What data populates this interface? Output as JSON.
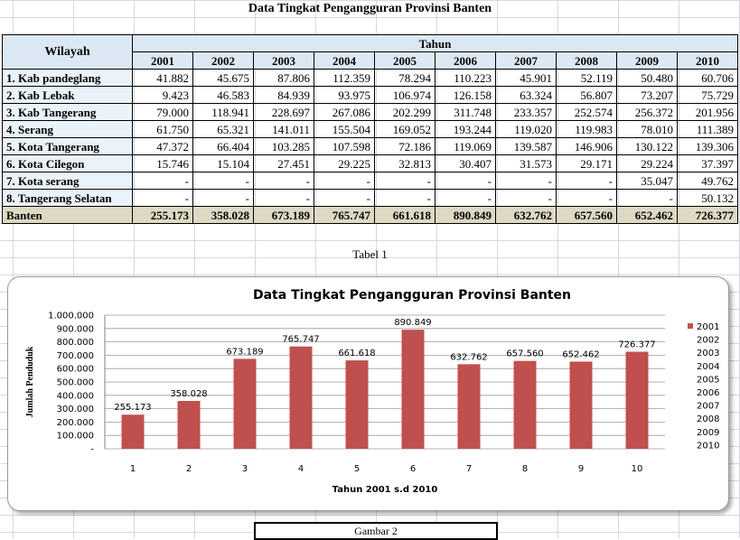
{
  "page": {
    "title": "Data Tingkat Pengangguran Provinsi Banten",
    "caption": "Tabel 1",
    "figure_caption": "Gambar 2"
  },
  "table": {
    "region_header": "Wilayah",
    "year_header": "Tahun",
    "years": [
      "2001",
      "2002",
      "2003",
      "2004",
      "2005",
      "2006",
      "2007",
      "2008",
      "2009",
      "2010"
    ],
    "rows": [
      {
        "label": "1. Kab pandeglang",
        "values": [
          "41.882",
          "45.675",
          "87.806",
          "112.359",
          "78.294",
          "110.223",
          "45.901",
          "52.119",
          "50.480",
          "60.706"
        ]
      },
      {
        "label": "2. Kab Lebak",
        "values": [
          "9.423",
          "46.583",
          "84.939",
          "93.975",
          "106.974",
          "126.158",
          "63.324",
          "56.807",
          "73.207",
          "75.729"
        ]
      },
      {
        "label": "3. Kab Tangerang",
        "values": [
          "79.000",
          "118.941",
          "228.697",
          "267.086",
          "202.299",
          "311.748",
          "233.357",
          "252.574",
          "256.372",
          "201.956"
        ]
      },
      {
        "label": "4. Serang",
        "values": [
          "61.750",
          "65.321",
          "141.011",
          "155.504",
          "169.052",
          "193.244",
          "119.020",
          "119.983",
          "78.010",
          "111.389"
        ]
      },
      {
        "label": "5. Kota Tangerang",
        "values": [
          "47.372",
          "66.404",
          "103.285",
          "107.598",
          "72.186",
          "119.069",
          "139.587",
          "146.906",
          "130.122",
          "139.306"
        ]
      },
      {
        "label": "6. Kota Cilegon",
        "values": [
          "15.746",
          "15.104",
          "27.451",
          "29.225",
          "32.813",
          "30.407",
          "31.573",
          "29.171",
          "29.224",
          "37.397"
        ]
      },
      {
        "label": "7. Kota serang",
        "values": [
          "-",
          "-",
          "-",
          "-",
          "-",
          "-",
          "-",
          "-",
          "35.047",
          "49.762"
        ]
      },
      {
        "label": "8. Tangerang Selatan",
        "values": [
          "-",
          "-",
          "-",
          "-",
          "-",
          "-",
          "-",
          "-",
          "-",
          "50.132"
        ]
      }
    ],
    "total": {
      "label": "Banten",
      "values": [
        "255.173",
        "358.028",
        "673.189",
        "765.747",
        "661.618",
        "890.849",
        "632.762",
        "657.560",
        "652.462",
        "726.377"
      ]
    }
  },
  "chart_data": {
    "type": "bar",
    "title": "Data Tingkat Pengangguran Provinsi Banten",
    "xlabel": "Tahun 2001 s.d 2010",
    "ylabel": "Jumlah Penduduk",
    "categories": [
      "1",
      "2",
      "3",
      "4",
      "5",
      "6",
      "7",
      "8",
      "9",
      "10"
    ],
    "values": [
      255173,
      358028,
      673189,
      765747,
      661618,
      890849,
      632762,
      657560,
      652462,
      726377
    ],
    "data_labels": [
      "255.173",
      "358.028",
      "673.189",
      "765.747",
      "661.618",
      "890.849",
      "632.762",
      "657.560",
      "652.462",
      "726.377"
    ],
    "ylim": [
      0,
      1000000
    ],
    "y_ticks": [
      "-",
      "100.000",
      "200.000",
      "300.000",
      "400.000",
      "500.000",
      "600.000",
      "700.000",
      "800.000",
      "900.000",
      "1.000.000"
    ],
    "legend": [
      "2001",
      "2002",
      "2003",
      "2004",
      "2005",
      "2006",
      "2007",
      "2008",
      "2009",
      "2010"
    ],
    "legend_position": "right",
    "bar_color": "#c0504d",
    "grid": true
  }
}
